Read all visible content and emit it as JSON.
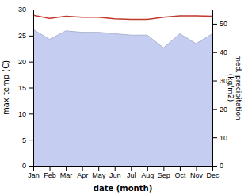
{
  "chart_data": {
    "type": "line",
    "xlabel": "date (month)",
    "ylabel": "max temp (C)",
    "y2label": "med. precipitation\n(kg/m2)",
    "categories": [
      "Jan",
      "Feb",
      "Mar",
      "Apr",
      "May",
      "Jun",
      "Jul",
      "Aug",
      "Sep",
      "Oct",
      "Nov",
      "Dec"
    ],
    "series": [
      {
        "type": "line",
        "color": "#c0392b",
        "values": [
          28.9,
          28.3,
          28.7,
          28.5,
          28.5,
          28.2,
          28.1,
          28.1,
          28.5,
          28.8,
          28.8,
          28.7
        ]
      },
      {
        "type": "area",
        "axis": "y2",
        "color": "#c5cef0",
        "values": [
          48.0,
          44.5,
          47.5,
          47.0,
          47.0,
          46.5,
          46.0,
          46.0,
          41.5,
          46.5,
          43.0,
          46.5
        ]
      }
    ],
    "ylim": [
      0,
      30
    ],
    "yticks": [
      0,
      5,
      10,
      15,
      20,
      25,
      30
    ],
    "y2lim": [
      0,
      55
    ],
    "y2ticks": [
      0,
      10,
      20,
      30,
      40,
      50
    ],
    "grid": false
  }
}
